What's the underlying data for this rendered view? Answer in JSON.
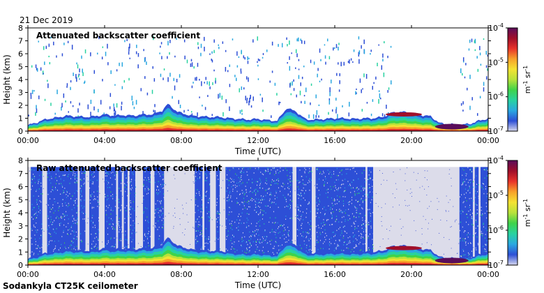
{
  "header": {
    "date": "21 Dec 2019"
  },
  "footer": {
    "instrument": "Sodankyla CT25K ceilometer"
  },
  "chart_data": [
    {
      "type": "heatmap",
      "title": "Attenuated backscatter coefficient",
      "xlabel": "Time (UTC)",
      "ylabel": "Height (km)",
      "x_ticks": [
        "00:00",
        "04:00",
        "08:00",
        "12:00",
        "16:00",
        "20:00",
        "00:00"
      ],
      "x_range_hours": [
        0,
        24
      ],
      "y_ticks": [
        0,
        1,
        2,
        3,
        4,
        5,
        6,
        7,
        8
      ],
      "ylim": [
        0,
        8
      ],
      "colorbar": {
        "unit_base": "m",
        "unit_base_exp": "-1",
        "unit_sr": "sr",
        "unit_sr_exp": "-1",
        "scale": "log",
        "ticks": [
          {
            "base": "10",
            "exp": "-4"
          },
          {
            "base": "10",
            "exp": "-5"
          },
          {
            "base": "10",
            "exp": "-6"
          },
          {
            "base": "10",
            "exp": "-7"
          }
        ],
        "colors": [
          "#d8d8ee",
          "#2d4fd6",
          "#2aa8e0",
          "#28d2a0",
          "#3fd34a",
          "#b8e23a",
          "#f4e233",
          "#f7a12a",
          "#e8322a",
          "#a00f2a",
          "#5a0d5a"
        ]
      },
      "boundary_layer_km": [
        [
          0.0,
          0.45
        ],
        [
          0.5,
          0.7
        ],
        [
          1.0,
          0.95
        ],
        [
          1.5,
          1.05
        ],
        [
          2.0,
          1.2
        ],
        [
          2.5,
          1.15
        ],
        [
          3.0,
          1.1
        ],
        [
          3.5,
          1.15
        ],
        [
          4.0,
          1.3
        ],
        [
          4.5,
          1.2
        ],
        [
          5.0,
          1.25
        ],
        [
          5.5,
          1.2
        ],
        [
          6.0,
          1.3
        ],
        [
          6.5,
          1.3
        ],
        [
          7.0,
          1.6
        ],
        [
          7.3,
          2.1
        ],
        [
          7.8,
          1.5
        ],
        [
          8.5,
          1.2
        ],
        [
          9.0,
          1.15
        ],
        [
          9.5,
          1.1
        ],
        [
          10.0,
          1.1
        ],
        [
          10.5,
          1.0
        ],
        [
          11.0,
          0.95
        ],
        [
          11.5,
          0.9
        ],
        [
          12.0,
          0.95
        ],
        [
          12.5,
          0.85
        ],
        [
          13.0,
          0.8
        ],
        [
          13.5,
          1.8
        ],
        [
          14.0,
          1.5
        ],
        [
          14.5,
          0.9
        ],
        [
          15.0,
          0.9
        ],
        [
          15.5,
          0.95
        ],
        [
          16.0,
          1.0
        ],
        [
          16.5,
          1.0
        ],
        [
          17.0,
          0.95
        ],
        [
          17.5,
          1.0
        ],
        [
          18.0,
          1.0
        ],
        [
          18.5,
          1.1
        ],
        [
          19.0,
          1.45
        ],
        [
          19.5,
          1.5
        ],
        [
          20.0,
          1.4
        ],
        [
          20.5,
          1.25
        ],
        [
          21.0,
          1.15
        ],
        [
          21.5,
          0.6
        ],
        [
          22.0,
          0.55
        ],
        [
          22.5,
          0.5
        ],
        [
          23.0,
          0.55
        ],
        [
          23.5,
          0.8
        ],
        [
          24.0,
          1.0
        ]
      ],
      "noise_columns_hours": []
    },
    {
      "type": "heatmap",
      "title": "Raw attenuated backscatter coefficient",
      "xlabel": "Time (UTC)",
      "ylabel": "Height (km)",
      "x_ticks": [
        "00:00",
        "04:00",
        "08:00",
        "12:00",
        "16:00",
        "20:00",
        "00:00"
      ],
      "x_range_hours": [
        0,
        24
      ],
      "y_ticks": [
        0,
        1,
        2,
        3,
        4,
        5,
        6,
        7,
        8
      ],
      "ylim": [
        0,
        8
      ],
      "colorbar": {
        "unit_base": "m",
        "unit_base_exp": "-1",
        "unit_sr": "sr",
        "unit_sr_exp": "-1",
        "scale": "log",
        "ticks": [
          {
            "base": "10",
            "exp": "-4"
          },
          {
            "base": "10",
            "exp": "-5"
          },
          {
            "base": "10",
            "exp": "-6"
          },
          {
            "base": "10",
            "exp": "-7"
          }
        ],
        "colors": [
          "#d8d8ee",
          "#2d4fd6",
          "#2aa8e0",
          "#28d2a0",
          "#3fd34a",
          "#b8e23a",
          "#f4e233",
          "#f7a12a",
          "#e8322a",
          "#a00f2a",
          "#5a0d5a"
        ]
      },
      "noise_top_km": 7.5,
      "noise_columns_hours": [
        [
          0.15,
          0.75
        ],
        [
          1.0,
          2.6
        ],
        [
          2.7,
          3.0
        ],
        [
          3.2,
          3.7
        ],
        [
          4.0,
          4.6
        ],
        [
          4.7,
          4.9
        ],
        [
          5.0,
          5.2
        ],
        [
          5.3,
          5.6
        ],
        [
          6.0,
          6.4
        ],
        [
          6.6,
          7.1
        ],
        [
          8.7,
          9.1
        ],
        [
          9.2,
          9.5
        ],
        [
          9.8,
          10.0
        ],
        [
          10.3,
          13.8
        ],
        [
          14.0,
          14.8
        ],
        [
          15.0,
          17.6
        ],
        [
          17.7,
          18.0
        ],
        [
          22.5,
          23.2
        ],
        [
          23.3,
          23.5
        ],
        [
          23.6,
          24.0
        ]
      ],
      "boundary_layer_km": [
        [
          0.0,
          0.45
        ],
        [
          0.5,
          0.7
        ],
        [
          1.0,
          0.95
        ],
        [
          1.5,
          1.05
        ],
        [
          2.0,
          1.2
        ],
        [
          2.5,
          1.15
        ],
        [
          3.0,
          1.1
        ],
        [
          3.5,
          1.15
        ],
        [
          4.0,
          1.3
        ],
        [
          4.5,
          1.2
        ],
        [
          5.0,
          1.25
        ],
        [
          5.5,
          1.2
        ],
        [
          6.0,
          1.3
        ],
        [
          6.5,
          1.3
        ],
        [
          7.0,
          1.6
        ],
        [
          7.3,
          2.1
        ],
        [
          7.8,
          1.5
        ],
        [
          8.5,
          1.2
        ],
        [
          9.0,
          1.15
        ],
        [
          9.5,
          1.1
        ],
        [
          10.0,
          1.1
        ],
        [
          10.5,
          1.0
        ],
        [
          11.0,
          0.95
        ],
        [
          11.5,
          0.9
        ],
        [
          12.0,
          0.95
        ],
        [
          12.5,
          0.85
        ],
        [
          13.0,
          0.8
        ],
        [
          13.5,
          1.8
        ],
        [
          14.0,
          1.5
        ],
        [
          14.5,
          0.9
        ],
        [
          15.0,
          0.9
        ],
        [
          15.5,
          0.95
        ],
        [
          16.0,
          1.0
        ],
        [
          16.5,
          1.0
        ],
        [
          17.0,
          0.95
        ],
        [
          17.5,
          1.0
        ],
        [
          18.0,
          1.0
        ],
        [
          18.5,
          1.1
        ],
        [
          19.0,
          1.45
        ],
        [
          19.5,
          1.5
        ],
        [
          20.0,
          1.4
        ],
        [
          20.5,
          1.25
        ],
        [
          21.0,
          1.15
        ],
        [
          21.5,
          0.6
        ],
        [
          22.0,
          0.55
        ],
        [
          22.5,
          0.5
        ],
        [
          23.0,
          0.55
        ],
        [
          23.5,
          0.8
        ],
        [
          24.0,
          1.0
        ]
      ]
    }
  ]
}
